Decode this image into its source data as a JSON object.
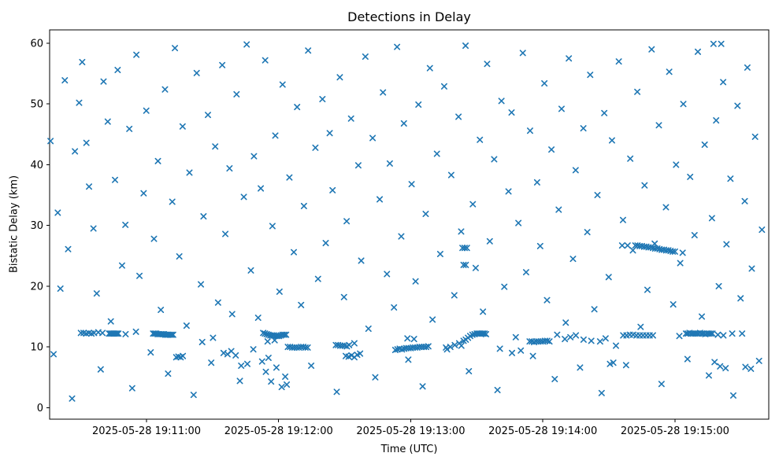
{
  "figure": {
    "title": "Detections in Delay",
    "xlabel": "Time (UTC)",
    "ylabel": "Bistatic Delay (km)"
  },
  "chart_data": {
    "type": "scatter",
    "title": "Detections in Delay",
    "xlabel": "Time (UTC)",
    "ylabel": "Bistatic Delay (km)",
    "marker": "x",
    "marker_color": "#1f77b4",
    "grid": false,
    "legend": "none",
    "x_units": "seconds after 2025-05-28 19:10:00 UTC",
    "xlim": [
      16,
      342.6
    ],
    "ylim": [
      -1.9,
      62.2
    ],
    "y_ticks": [
      0,
      10,
      20,
      30,
      40,
      50,
      60
    ],
    "x_ticks": [
      {
        "value": 60,
        "label": "2025-05-28 19:11:00"
      },
      {
        "value": 120,
        "label": "2025-05-28 19:12:00"
      },
      {
        "value": 180,
        "label": "2025-05-28 19:13:00"
      },
      {
        "value": 240,
        "label": "2025-05-28 19:14:00"
      },
      {
        "value": 300,
        "label": "2025-05-28 19:15:00"
      }
    ],
    "points": [
      [
        16.4,
        43.9
      ],
      [
        17.8,
        8.8
      ],
      [
        19.7,
        32.1
      ],
      [
        20.9,
        19.6
      ],
      [
        22.9,
        53.9
      ],
      [
        24.4,
        26.1
      ],
      [
        26.2,
        1.5
      ],
      [
        27.5,
        42.2
      ],
      [
        29.4,
        50.2
      ],
      [
        30.8,
        56.9
      ],
      [
        32.7,
        43.6
      ],
      [
        33.9,
        36.4
      ],
      [
        35.9,
        29.5
      ],
      [
        37.4,
        18.8
      ],
      [
        39.2,
        6.3
      ],
      [
        40.5,
        53.7
      ],
      [
        42.4,
        47.1
      ],
      [
        43.8,
        14.2
      ],
      [
        45.7,
        37.5
      ],
      [
        46.9,
        55.6
      ],
      [
        48.9,
        23.4
      ],
      [
        50.4,
        30.1
      ],
      [
        52.2,
        45.9
      ],
      [
        53.5,
        3.2
      ],
      [
        55.4,
        58.1
      ],
      [
        56.8,
        21.7
      ],
      [
        58.7,
        35.3
      ],
      [
        59.9,
        48.9
      ],
      [
        61.9,
        9.1
      ],
      [
        63.4,
        27.8
      ],
      [
        65.2,
        40.6
      ],
      [
        66.5,
        16.1
      ],
      [
        68.4,
        52.4
      ],
      [
        69.8,
        5.6
      ],
      [
        71.7,
        33.9
      ],
      [
        72.9,
        59.2
      ],
      [
        74.9,
        24.9
      ],
      [
        76.4,
        46.3
      ],
      [
        78.2,
        13.5
      ],
      [
        79.5,
        38.7
      ],
      [
        81.4,
        2.1
      ],
      [
        82.8,
        55.1
      ],
      [
        84.7,
        20.3
      ],
      [
        85.9,
        31.5
      ],
      [
        87.9,
        48.2
      ],
      [
        89.4,
        7.4
      ],
      [
        91.2,
        43.0
      ],
      [
        92.5,
        17.3
      ],
      [
        94.4,
        56.4
      ],
      [
        95.8,
        28.6
      ],
      [
        97.7,
        39.4
      ],
      [
        98.9,
        15.4
      ],
      [
        100.9,
        51.6
      ],
      [
        102.4,
        4.4
      ],
      [
        104.2,
        34.7
      ],
      [
        105.5,
        59.8
      ],
      [
        107.4,
        22.6
      ],
      [
        108.8,
        41.4
      ],
      [
        110.7,
        14.8
      ],
      [
        111.9,
        36.1
      ],
      [
        113.9,
        57.2
      ],
      [
        115.4,
        8.2
      ],
      [
        117.2,
        29.9
      ],
      [
        118.5,
        44.8
      ],
      [
        120.4,
        19.1
      ],
      [
        121.8,
        53.2
      ],
      [
        123.7,
        3.8
      ],
      [
        124.9,
        37.9
      ],
      [
        126.9,
        25.6
      ],
      [
        128.4,
        49.5
      ],
      [
        130.2,
        16.9
      ],
      [
        131.5,
        33.2
      ],
      [
        133.4,
        58.8
      ],
      [
        134.8,
        6.9
      ],
      [
        136.7,
        42.8
      ],
      [
        137.9,
        21.2
      ],
      [
        139.9,
        50.8
      ],
      [
        141.4,
        27.1
      ],
      [
        143.2,
        45.2
      ],
      [
        144.5,
        35.8
      ],
      [
        146.4,
        2.6
      ],
      [
        147.8,
        54.4
      ],
      [
        149.7,
        18.2
      ],
      [
        150.9,
        30.7
      ],
      [
        152.9,
        47.6
      ],
      [
        154.4,
        10.6
      ],
      [
        156.2,
        39.9
      ],
      [
        157.5,
        24.2
      ],
      [
        159.4,
        57.8
      ],
      [
        160.8,
        13.0
      ],
      [
        162.7,
        44.4
      ],
      [
        163.9,
        5.0
      ],
      [
        165.9,
        34.3
      ],
      [
        167.4,
        51.9
      ],
      [
        169.2,
        22.0
      ],
      [
        170.5,
        40.2
      ],
      [
        172.4,
        16.5
      ],
      [
        173.8,
        59.4
      ],
      [
        175.7,
        28.2
      ],
      [
        176.9,
        46.8
      ],
      [
        178.9,
        7.9
      ],
      [
        180.4,
        36.8
      ],
      [
        182.2,
        20.8
      ],
      [
        183.5,
        49.9
      ],
      [
        185.4,
        3.5
      ],
      [
        186.8,
        31.9
      ],
      [
        188.7,
        55.9
      ],
      [
        189.9,
        14.5
      ],
      [
        191.9,
        41.8
      ],
      [
        193.4,
        25.3
      ],
      [
        195.2,
        52.9
      ],
      [
        196.5,
        9.6
      ],
      [
        198.4,
        38.3
      ],
      [
        199.8,
        18.5
      ],
      [
        201.7,
        47.9
      ],
      [
        202.9,
        29.0
      ],
      [
        204.9,
        59.6
      ],
      [
        206.4,
        6.0
      ],
      [
        208.2,
        33.5
      ],
      [
        209.5,
        23.0
      ],
      [
        211.4,
        44.1
      ],
      [
        212.8,
        15.8
      ],
      [
        214.7,
        56.6
      ],
      [
        215.9,
        27.4
      ],
      [
        217.9,
        40.9
      ],
      [
        219.4,
        2.9
      ],
      [
        221.2,
        50.5
      ],
      [
        222.5,
        19.9
      ],
      [
        224.4,
        35.6
      ],
      [
        225.8,
        48.6
      ],
      [
        227.7,
        11.6
      ],
      [
        228.9,
        30.4
      ],
      [
        230.9,
        58.4
      ],
      [
        232.4,
        22.3
      ],
      [
        234.2,
        45.6
      ],
      [
        235.5,
        8.5
      ],
      [
        237.4,
        37.1
      ],
      [
        238.8,
        26.6
      ],
      [
        240.7,
        53.4
      ],
      [
        241.9,
        17.7
      ],
      [
        243.9,
        42.5
      ],
      [
        245.4,
        4.7
      ],
      [
        247.2,
        32.6
      ],
      [
        248.5,
        49.2
      ],
      [
        250.4,
        14.0
      ],
      [
        251.8,
        57.5
      ],
      [
        253.7,
        24.5
      ],
      [
        254.9,
        39.1
      ],
      [
        256.9,
        6.6
      ],
      [
        258.4,
        46.0
      ],
      [
        260.2,
        28.9
      ],
      [
        261.5,
        54.8
      ],
      [
        263.4,
        16.2
      ],
      [
        264.8,
        35.0
      ],
      [
        266.7,
        2.4
      ],
      [
        267.9,
        48.5
      ],
      [
        269.9,
        21.5
      ],
      [
        271.4,
        44.0
      ],
      [
        273.2,
        10.2
      ],
      [
        274.5,
        57.0
      ],
      [
        276.4,
        30.9
      ],
      [
        277.8,
        7.0
      ],
      [
        279.7,
        41.0
      ],
      [
        280.9,
        25.9
      ],
      [
        282.9,
        52.0
      ],
      [
        284.4,
        13.3
      ],
      [
        286.2,
        36.6
      ],
      [
        287.5,
        19.4
      ],
      [
        289.4,
        59.0
      ],
      [
        290.8,
        27.0
      ],
      [
        292.7,
        46.5
      ],
      [
        293.9,
        3.9
      ],
      [
        295.9,
        33.0
      ],
      [
        297.4,
        55.3
      ],
      [
        299.2,
        17.0
      ],
      [
        300.5,
        40.0
      ],
      [
        302.4,
        23.8
      ],
      [
        303.8,
        50.0
      ],
      [
        305.7,
        8.0
      ],
      [
        306.9,
        38.0
      ],
      [
        308.9,
        28.4
      ],
      [
        310.4,
        58.6
      ],
      [
        312.2,
        15.0
      ],
      [
        313.5,
        43.3
      ],
      [
        315.4,
        5.3
      ],
      [
        316.8,
        31.2
      ],
      [
        318.7,
        47.3
      ],
      [
        319.9,
        20.0
      ],
      [
        321.9,
        53.6
      ],
      [
        323.4,
        26.9
      ],
      [
        325.2,
        37.7
      ],
      [
        326.5,
        2.0
      ],
      [
        328.4,
        49.7
      ],
      [
        329.8,
        18.0
      ],
      [
        331.7,
        34.0
      ],
      [
        332.9,
        56.0
      ],
      [
        334.9,
        22.9
      ],
      [
        336.4,
        44.6
      ],
      [
        338.2,
        7.7
      ],
      [
        339.5,
        29.3
      ],
      [
        30.2,
        12.3
      ],
      [
        31.4,
        12.3
      ],
      [
        32.6,
        12.2
      ],
      [
        33.8,
        12.3
      ],
      [
        35.0,
        12.2
      ],
      [
        36.2,
        12.3
      ],
      [
        38.1,
        12.4
      ],
      [
        40.0,
        12.3
      ],
      [
        43.0,
        12.2
      ],
      [
        43.6,
        12.2
      ],
      [
        44.2,
        12.2
      ],
      [
        44.8,
        12.2
      ],
      [
        45.4,
        12.2
      ],
      [
        46.0,
        12.2
      ],
      [
        46.6,
        12.2
      ],
      [
        47.2,
        12.2
      ],
      [
        50.5,
        12.1
      ],
      [
        55.2,
        12.5
      ],
      [
        63.0,
        12.2
      ],
      [
        63.7,
        12.2
      ],
      [
        64.4,
        12.2
      ],
      [
        65.1,
        12.1
      ],
      [
        65.8,
        12.1
      ],
      [
        66.5,
        12.1
      ],
      [
        67.2,
        12.1
      ],
      [
        67.9,
        12.1
      ],
      [
        68.6,
        12.0
      ],
      [
        69.3,
        12.0
      ],
      [
        70.0,
        12.0
      ],
      [
        70.7,
        12.0
      ],
      [
        71.4,
        12.0
      ],
      [
        72.1,
        12.0
      ],
      [
        73.5,
        8.3
      ],
      [
        74.5,
        8.4
      ],
      [
        75.5,
        8.3
      ],
      [
        76.5,
        8.5
      ],
      [
        85.3,
        10.8
      ],
      [
        90.2,
        11.5
      ],
      [
        95.0,
        9.0
      ],
      [
        96.8,
        8.8
      ],
      [
        98.5,
        9.3
      ],
      [
        100.5,
        8.6
      ],
      [
        103.0,
        6.9
      ],
      [
        105.8,
        7.2
      ],
      [
        108.5,
        9.6
      ],
      [
        113.0,
        12.3
      ],
      [
        113.8,
        12.2
      ],
      [
        114.6,
        12.1
      ],
      [
        115.4,
        12.0
      ],
      [
        116.2,
        11.9
      ],
      [
        117.0,
        11.9
      ],
      [
        117.8,
        11.9
      ],
      [
        118.6,
        11.8
      ],
      [
        119.4,
        11.8
      ],
      [
        120.2,
        11.8
      ],
      [
        121.0,
        11.9
      ],
      [
        121.8,
        12.0
      ],
      [
        122.6,
        12.0
      ],
      [
        123.4,
        12.0
      ],
      [
        115.0,
        10.9
      ],
      [
        118.2,
        11.1
      ],
      [
        112.5,
        7.6
      ],
      [
        114.2,
        5.9
      ],
      [
        116.6,
        4.3
      ],
      [
        119.0,
        6.6
      ],
      [
        121.4,
        3.4
      ],
      [
        123.0,
        5.1
      ],
      [
        124.2,
        10.0
      ],
      [
        125.2,
        10.0
      ],
      [
        126.2,
        9.9
      ],
      [
        127.2,
        9.9
      ],
      [
        128.2,
        9.9
      ],
      [
        129.2,
        9.9
      ],
      [
        130.2,
        10.0
      ],
      [
        131.2,
        10.0
      ],
      [
        132.2,
        9.9
      ],
      [
        133.2,
        9.9
      ],
      [
        146.0,
        10.3
      ],
      [
        147.0,
        10.3
      ],
      [
        148.0,
        10.2
      ],
      [
        149.0,
        10.2
      ],
      [
        150.0,
        10.2
      ],
      [
        151.0,
        10.1
      ],
      [
        152.0,
        10.3
      ],
      [
        150.5,
        8.5
      ],
      [
        151.8,
        8.4
      ],
      [
        153.1,
        8.6
      ],
      [
        154.4,
        8.3
      ],
      [
        155.7,
        8.7
      ],
      [
        157.0,
        8.9
      ],
      [
        173.0,
        9.5
      ],
      [
        174.0,
        9.6
      ],
      [
        175.0,
        9.7
      ],
      [
        176.0,
        9.6
      ],
      [
        177.0,
        9.7
      ],
      [
        178.0,
        9.8
      ],
      [
        179.0,
        9.8
      ],
      [
        180.0,
        9.8
      ],
      [
        181.0,
        9.9
      ],
      [
        182.0,
        9.9
      ],
      [
        183.0,
        9.9
      ],
      [
        184.0,
        10.0
      ],
      [
        185.0,
        10.0
      ],
      [
        186.0,
        10.0
      ],
      [
        187.0,
        10.0
      ],
      [
        188.0,
        10.1
      ],
      [
        178.5,
        11.4
      ],
      [
        181.5,
        11.3
      ],
      [
        196.0,
        9.9
      ],
      [
        198.0,
        10.0
      ],
      [
        200.0,
        10.3
      ],
      [
        202.0,
        10.6
      ],
      [
        203.0,
        10.2
      ],
      [
        204.0,
        11.0
      ],
      [
        205.0,
        11.2
      ],
      [
        206.0,
        11.5
      ],
      [
        207.0,
        11.8
      ],
      [
        208.0,
        12.0
      ],
      [
        209.0,
        12.1
      ],
      [
        210.0,
        12.2
      ],
      [
        210.7,
        12.2
      ],
      [
        211.4,
        12.2
      ],
      [
        212.1,
        12.2
      ],
      [
        212.8,
        12.2
      ],
      [
        213.5,
        12.2
      ],
      [
        214.2,
        12.1
      ],
      [
        203.5,
        26.3
      ],
      [
        204.5,
        26.3
      ],
      [
        205.5,
        26.3
      ],
      [
        204.0,
        23.5
      ],
      [
        205.0,
        23.5
      ],
      [
        234.0,
        10.9
      ],
      [
        235.0,
        10.9
      ],
      [
        236.0,
        10.8
      ],
      [
        237.0,
        10.9
      ],
      [
        238.0,
        10.9
      ],
      [
        239.0,
        10.9
      ],
      [
        240.0,
        10.9
      ],
      [
        241.0,
        11.0
      ],
      [
        242.0,
        11.0
      ],
      [
        243.0,
        10.9
      ],
      [
        246.5,
        12.0
      ],
      [
        250.0,
        11.3
      ],
      [
        252.5,
        11.6
      ],
      [
        255.0,
        11.9
      ],
      [
        220.5,
        9.7
      ],
      [
        226.0,
        9.0
      ],
      [
        230.0,
        9.4
      ],
      [
        258.5,
        11.2
      ],
      [
        262.0,
        11.0
      ],
      [
        266.0,
        10.9
      ],
      [
        268.5,
        11.4
      ],
      [
        270.5,
        7.2
      ],
      [
        272.0,
        7.4
      ],
      [
        276.5,
        11.9
      ],
      [
        278.0,
        11.9
      ],
      [
        279.5,
        12.0
      ],
      [
        281.0,
        12.0
      ],
      [
        282.5,
        11.9
      ],
      [
        284.0,
        11.9
      ],
      [
        285.5,
        11.9
      ],
      [
        287.0,
        11.9
      ],
      [
        288.5,
        11.9
      ],
      [
        290.0,
        11.9
      ],
      [
        276.0,
        26.7
      ],
      [
        278.5,
        26.7
      ],
      [
        282.0,
        26.7
      ],
      [
        283.0,
        26.7
      ],
      [
        284.0,
        26.6
      ],
      [
        285.0,
        26.6
      ],
      [
        286.0,
        26.5
      ],
      [
        287.0,
        26.5
      ],
      [
        288.0,
        26.4
      ],
      [
        289.0,
        26.4
      ],
      [
        290.0,
        26.3
      ],
      [
        291.0,
        26.2
      ],
      [
        292.0,
        26.2
      ],
      [
        293.0,
        26.1
      ],
      [
        294.0,
        26.0
      ],
      [
        295.0,
        26.0
      ],
      [
        296.0,
        25.9
      ],
      [
        297.0,
        25.9
      ],
      [
        298.0,
        25.8
      ],
      [
        299.0,
        25.7
      ],
      [
        300.0,
        25.7
      ],
      [
        303.5,
        25.5
      ],
      [
        302.0,
        11.8
      ],
      [
        305.0,
        12.2
      ],
      [
        305.8,
        12.2
      ],
      [
        306.6,
        12.3
      ],
      [
        307.4,
        12.2
      ],
      [
        308.2,
        12.2
      ],
      [
        309.0,
        12.2
      ],
      [
        309.8,
        12.2
      ],
      [
        310.6,
        12.2
      ],
      [
        311.4,
        12.3
      ],
      [
        312.2,
        12.2
      ],
      [
        313.0,
        12.2
      ],
      [
        313.8,
        12.1
      ],
      [
        314.6,
        12.2
      ],
      [
        315.4,
        12.2
      ],
      [
        316.2,
        12.2
      ],
      [
        317.0,
        12.2
      ],
      [
        319.5,
        12.0
      ],
      [
        322.0,
        11.9
      ],
      [
        326.0,
        12.2
      ],
      [
        330.5,
        12.2
      ],
      [
        318.0,
        7.5
      ],
      [
        320.5,
        6.8
      ],
      [
        323.0,
        6.5
      ],
      [
        332.0,
        6.7
      ],
      [
        334.5,
        6.4
      ],
      [
        317.5,
        59.9
      ],
      [
        321.0,
        59.9
      ]
    ]
  }
}
